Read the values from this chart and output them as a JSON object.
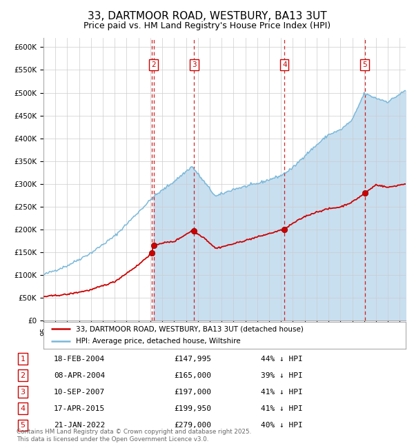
{
  "title": "33, DARTMOOR ROAD, WESTBURY, BA13 3UT",
  "subtitle": "Price paid vs. HM Land Registry's House Price Index (HPI)",
  "title_fontsize": 11,
  "subtitle_fontsize": 9,
  "ylim": [
    0,
    620000
  ],
  "yticks": [
    0,
    50000,
    100000,
    150000,
    200000,
    250000,
    300000,
    350000,
    400000,
    450000,
    500000,
    550000,
    600000
  ],
  "ytick_labels": [
    "£0",
    "£50K",
    "£100K",
    "£150K",
    "£200K",
    "£250K",
    "£300K",
    "£350K",
    "£400K",
    "£450K",
    "£500K",
    "£550K",
    "£600K"
  ],
  "hpi_color": "#7ab8d9",
  "hpi_fill_color": "#c8dff0",
  "price_color": "#cc0000",
  "vline_color": "#cc0000",
  "background_color": "#ffffff",
  "grid_color": "#cccccc",
  "legend_line1": "33, DARTMOOR ROAD, WESTBURY, BA13 3UT (detached house)",
  "legend_line2": "HPI: Average price, detached house, Wiltshire",
  "transactions": [
    {
      "num": 1,
      "date": "18-FEB-2004",
      "year": 2004.12,
      "price": 147995,
      "pct": "44%",
      "dir": "↓"
    },
    {
      "num": 2,
      "date": "08-APR-2004",
      "year": 2004.27,
      "price": 165000,
      "pct": "39%",
      "dir": "↓"
    },
    {
      "num": 3,
      "date": "10-SEP-2007",
      "year": 2007.69,
      "price": 197000,
      "pct": "41%",
      "dir": "↓"
    },
    {
      "num": 4,
      "date": "17-APR-2015",
      "year": 2015.29,
      "price": 199950,
      "pct": "41%",
      "dir": "↓"
    },
    {
      "num": 5,
      "date": "21-JAN-2022",
      "year": 2022.05,
      "price": 279000,
      "pct": "40%",
      "dir": "↓"
    }
  ],
  "footer": "Contains HM Land Registry data © Crown copyright and database right 2025.\nThis data is licensed under the Open Government Licence v3.0.",
  "xmin": 1995,
  "xmax": 2025.5,
  "hpi_ref_years": [
    1995,
    1997,
    1999,
    2001,
    2003,
    2004.3,
    2006,
    2007.5,
    2008.5,
    2009.5,
    2011,
    2013,
    2015,
    2016,
    2017,
    2018,
    2019,
    2020,
    2021,
    2022,
    2023,
    2024,
    2025.5
  ],
  "hpi_ref_vals": [
    100000,
    120000,
    148000,
    185000,
    238000,
    272000,
    305000,
    338000,
    305000,
    272000,
    288000,
    300000,
    318000,
    335000,
    362000,
    385000,
    408000,
    418000,
    440000,
    498000,
    488000,
    480000,
    505000
  ],
  "price_ref_years": [
    1995,
    1997,
    1999,
    2001,
    2003,
    2004.1,
    2004.28,
    2005,
    2006,
    2007.5,
    2008.5,
    2009.5,
    2011,
    2013,
    2015.28,
    2016,
    2017,
    2018,
    2019,
    2020,
    2021,
    2022.05,
    2023,
    2024,
    2025.5
  ],
  "price_ref_vals": [
    52000,
    57000,
    67000,
    85000,
    122000,
    147995,
    165000,
    170000,
    173000,
    197000,
    182000,
    158000,
    168000,
    183000,
    199950,
    213000,
    228000,
    238000,
    245000,
    249000,
    260000,
    279000,
    298000,
    292000,
    300000
  ]
}
